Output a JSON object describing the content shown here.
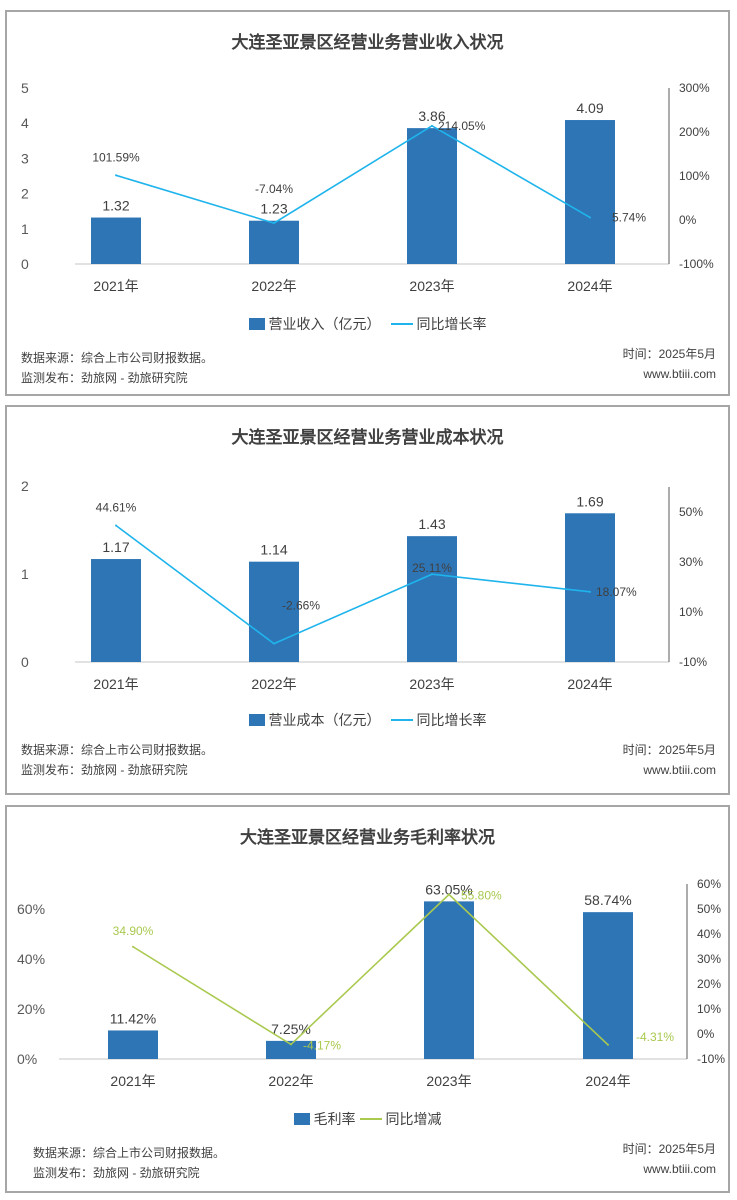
{
  "chart_data": [
    {
      "type": "bar",
      "title": "大连圣亚景区经营业务营业收入状况",
      "categories": [
        "2021年",
        "2022年",
        "2023年",
        "2024年"
      ],
      "series": [
        {
          "name": "营业收入（亿元）",
          "axis": "left",
          "type": "bar",
          "values": [
            1.32,
            1.23,
            3.86,
            4.09
          ],
          "labels": [
            "1.32",
            "1.23",
            "3.86",
            "4.09"
          ],
          "color": "#2e75b6"
        },
        {
          "name": "同比增长率",
          "axis": "right",
          "type": "line",
          "values": [
            101.59,
            -7.04,
            214.05,
            5.74
          ],
          "labels": [
            "101.59%",
            "-7.04%",
            "214.05%",
            "5.74%"
          ],
          "color": "#1fb4ec"
        }
      ],
      "left_axis": {
        "ylim": [
          0,
          5
        ],
        "ticks": [
          "0",
          "1",
          "2",
          "3",
          "4",
          "5"
        ],
        "values": [
          0,
          1,
          2,
          3,
          4,
          5
        ]
      },
      "right_axis": {
        "ylim": [
          -100,
          300
        ],
        "ticks": [
          "-100%",
          "0%",
          "100%",
          "200%",
          "300%"
        ],
        "values": [
          -100,
          0,
          100,
          200,
          300
        ]
      },
      "legend": "bottom",
      "source": "数据来源：综合上市公司财报数据。",
      "publisher": "监测发布：劲旅网 - 劲旅研究院",
      "time": "时间：2025年5月",
      "site": "www.btiii.com"
    },
    {
      "type": "bar",
      "title": "大连圣亚景区经营业务营业成本状况",
      "categories": [
        "2021年",
        "2022年",
        "2023年",
        "2024年"
      ],
      "series": [
        {
          "name": "营业成本（亿元）",
          "axis": "left",
          "type": "bar",
          "values": [
            1.17,
            1.14,
            1.43,
            1.69
          ],
          "labels": [
            "1.17",
            "1.14",
            "1.43",
            "1.69"
          ],
          "color": "#2e75b6"
        },
        {
          "name": "同比增长率",
          "axis": "right",
          "type": "line",
          "values": [
            44.61,
            -2.66,
            25.11,
            18.07
          ],
          "labels": [
            "44.61%",
            "-2.66%",
            "25.11%",
            "18.07%"
          ],
          "color": "#1fb4ec"
        }
      ],
      "left_axis": {
        "ylim": [
          0,
          2
        ],
        "ticks": [
          "0",
          "1",
          "2"
        ],
        "values": [
          0,
          1,
          2
        ]
      },
      "right_axis": {
        "ylim": [
          -10,
          60
        ],
        "ticks": [
          "-10%",
          "10%",
          "30%",
          "50%"
        ],
        "values": [
          -10,
          10,
          30,
          50
        ]
      },
      "legend": "bottom",
      "source": "数据来源：综合上市公司财报数据。",
      "publisher": "监测发布：劲旅网 - 劲旅研究院",
      "time": "时间：2025年5月",
      "site": "www.btiii.com"
    },
    {
      "type": "bar",
      "title": "大连圣亚景区经营业务毛利率状况",
      "categories": [
        "2021年",
        "2022年",
        "2023年",
        "2024年"
      ],
      "series": [
        {
          "name": "毛利率",
          "axis": "left",
          "type": "bar",
          "values": [
            11.42,
            7.25,
            63.05,
            58.74
          ],
          "labels": [
            "11.42%",
            "7.25%",
            "63.05%",
            "58.74%"
          ],
          "color": "#2e75b6"
        },
        {
          "name": "同比增减",
          "axis": "right",
          "type": "line",
          "values": [
            34.9,
            -4.17,
            55.8,
            -4.31
          ],
          "labels": [
            "34.90%",
            "-4.17%",
            "55.80%",
            "-4.31%"
          ],
          "color": "#a9c94f"
        }
      ],
      "left_axis": {
        "ylim": [
          0,
          70
        ],
        "ticks": [
          "0%",
          "20%",
          "40%",
          "60%"
        ],
        "values": [
          0,
          20,
          40,
          60
        ]
      },
      "right_axis": {
        "ylim": [
          -10,
          60
        ],
        "ticks": [
          "-10%",
          "0%",
          "10%",
          "20%",
          "30%",
          "40%",
          "50%",
          "60%"
        ],
        "values": [
          -10,
          0,
          10,
          20,
          30,
          40,
          50,
          60
        ]
      },
      "legend": "bottom",
      "source": "数据来源：综合上市公司财报数据。",
      "publisher": "监测发布：劲旅网 - 劲旅研究院",
      "time": "时间：2025年5月",
      "site": "www.btiii.com"
    }
  ]
}
